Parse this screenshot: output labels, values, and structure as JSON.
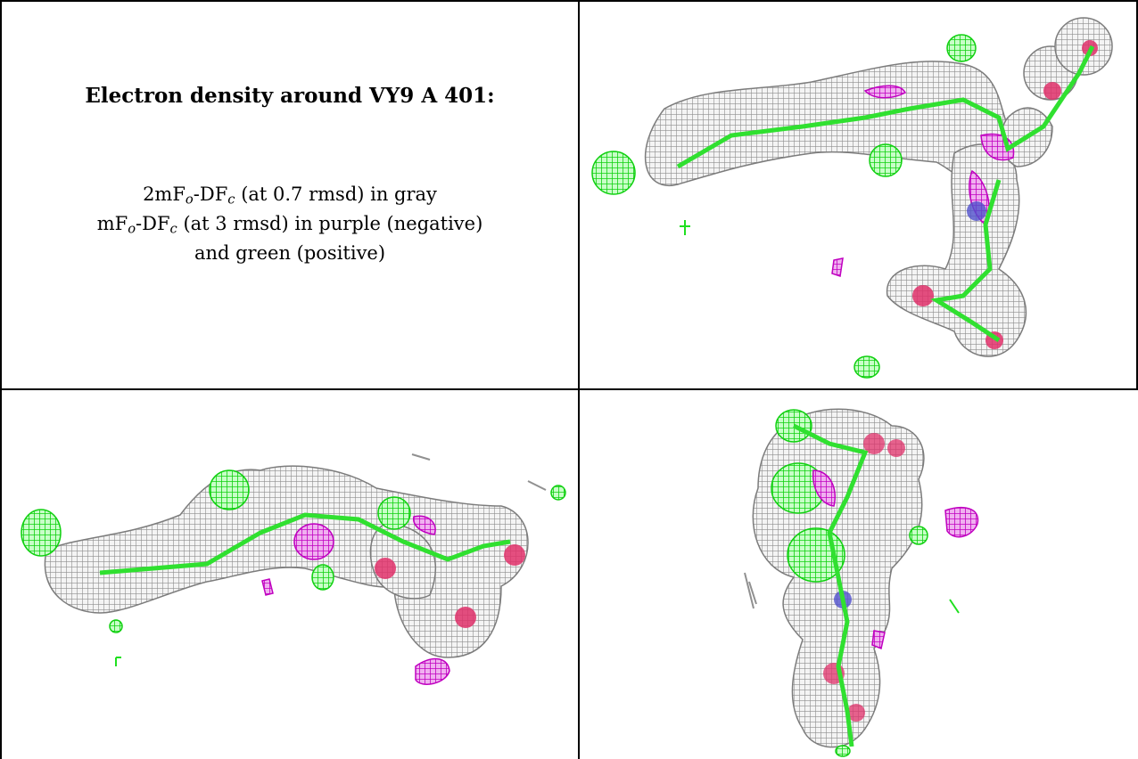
{
  "caption": {
    "title": "Electron density around VY9 A 401:",
    "line1": {
      "pre": "2mF",
      "sub1": "o",
      "mid": "-DF",
      "sub2": "c",
      "post": " (at 0.7 rmsd) in gray"
    },
    "line2": {
      "pre": "mF",
      "sub1": "o",
      "mid": "-DF",
      "sub2": "c",
      "post": " (at 3 rmsd) in purple (negative)"
    },
    "line3": "and green (positive)"
  },
  "colors": {
    "mesh_gray": "#9a9a9a",
    "negative": "#cc00cc",
    "positive": "#22ee22",
    "oxygen": "#e0306a",
    "nitrogen": "#5050cc",
    "border": "#000000"
  },
  "panels": [
    "top-right-view",
    "bottom-left-view",
    "bottom-right-view"
  ]
}
